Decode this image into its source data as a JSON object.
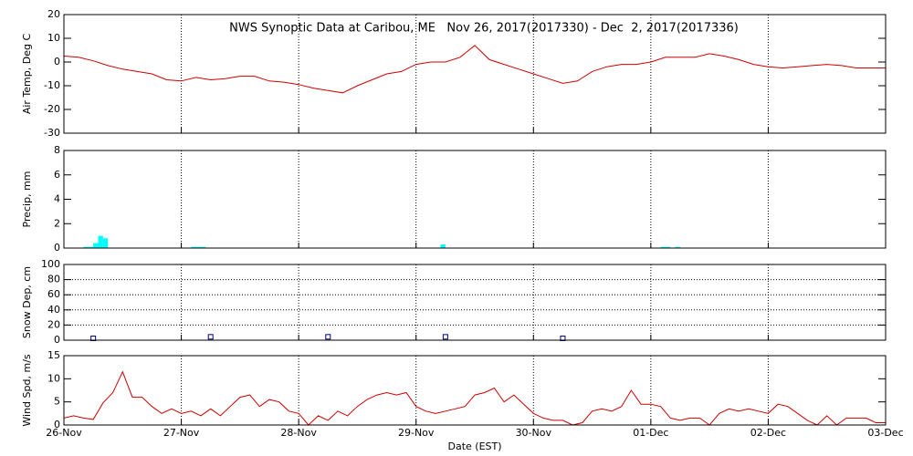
{
  "chart_data": [
    {
      "type": "line",
      "title": "NWS Synoptic Data at Caribou, ME   Nov 26, 2017(2017330) - Dec  2, 2017(2017336)",
      "ylabel": "Air Temp, Deg C",
      "color": "#d00000",
      "ylim": [
        -30,
        20
      ],
      "yticks": [
        -30,
        -20,
        -10,
        0,
        10,
        20
      ],
      "ygrid": false,
      "xgrid": true,
      "xlim": [
        "2017-11-26T00:00",
        "2017-12-03T00:00"
      ],
      "xticks": [
        {
          "value": "2017-11-26T00:00",
          "label": "26-Nov"
        },
        {
          "value": "2017-11-27T00:00",
          "label": "27-Nov"
        },
        {
          "value": "2017-11-28T00:00",
          "label": "28-Nov"
        },
        {
          "value": "2017-11-29T00:00",
          "label": "29-Nov"
        },
        {
          "value": "2017-11-30T00:00",
          "label": "30-Nov"
        },
        {
          "value": "2017-12-01T00:00",
          "label": "01-Dec"
        },
        {
          "value": "2017-12-02T00:00",
          "label": "02-Dec"
        },
        {
          "value": "2017-12-03T00:00",
          "label": "03-Dec"
        }
      ],
      "x": [
        "2017-11-26T00:00",
        "2017-11-26T03:00",
        "2017-11-26T06:00",
        "2017-11-26T09:00",
        "2017-11-26T12:00",
        "2017-11-26T15:00",
        "2017-11-26T18:00",
        "2017-11-26T21:00",
        "2017-11-27T00:00",
        "2017-11-27T03:00",
        "2017-11-27T06:00",
        "2017-11-27T09:00",
        "2017-11-27T12:00",
        "2017-11-27T15:00",
        "2017-11-27T18:00",
        "2017-11-27T21:00",
        "2017-11-28T00:00",
        "2017-11-28T03:00",
        "2017-11-28T06:00",
        "2017-11-28T09:00",
        "2017-11-28T12:00",
        "2017-11-28T15:00",
        "2017-11-28T18:00",
        "2017-11-28T21:00",
        "2017-11-29T00:00",
        "2017-11-29T03:00",
        "2017-11-29T06:00",
        "2017-11-29T09:00",
        "2017-11-29T12:00",
        "2017-11-29T15:00",
        "2017-11-29T18:00",
        "2017-11-29T21:00",
        "2017-11-30T00:00",
        "2017-11-30T03:00",
        "2017-11-30T06:00",
        "2017-11-30T09:00",
        "2017-11-30T12:00",
        "2017-11-30T15:00",
        "2017-11-30T18:00",
        "2017-11-30T21:00",
        "2017-12-01T00:00",
        "2017-12-01T03:00",
        "2017-12-01T06:00",
        "2017-12-01T09:00",
        "2017-12-01T12:00",
        "2017-12-01T15:00",
        "2017-12-01T18:00",
        "2017-12-01T21:00",
        "2017-12-02T00:00",
        "2017-12-02T03:00",
        "2017-12-02T06:00",
        "2017-12-02T09:00",
        "2017-12-02T12:00",
        "2017-12-02T15:00",
        "2017-12-02T18:00",
        "2017-12-02T21:00",
        "2017-12-03T00:00"
      ],
      "values": [
        2.5,
        2,
        0.5,
        -1.5,
        -3,
        -4,
        -5,
        -7.5,
        -8,
        -6.5,
        -7.5,
        -7,
        -6,
        -6,
        -8,
        -8.5,
        -9.5,
        -11,
        -12,
        -13,
        -10,
        -7.5,
        -5,
        -4,
        -1,
        0,
        0,
        2,
        7,
        1,
        -1,
        -3,
        -5,
        -7,
        -9,
        -8,
        -4,
        -2,
        -1,
        -1,
        0,
        2,
        2,
        2,
        3.5,
        2.5,
        1,
        -1,
        -2,
        -2.5,
        -2,
        -1.5,
        -1,
        -1.5,
        -2.5,
        -2.5,
        -2.5
      ]
    },
    {
      "type": "bar",
      "ylabel": "Precip, mm",
      "color": "#00ffff",
      "ylim": [
        0,
        8
      ],
      "yticks": [
        0,
        2,
        4,
        6,
        8
      ],
      "ygrid": false,
      "xgrid": true,
      "xlim": [
        "2017-11-26T00:00",
        "2017-12-03T00:00"
      ],
      "xticks": [
        {
          "value": "2017-11-26T00:00",
          "label": "26-Nov"
        },
        {
          "value": "2017-11-27T00:00",
          "label": "27-Nov"
        },
        {
          "value": "2017-11-28T00:00",
          "label": "28-Nov"
        },
        {
          "value": "2017-11-29T00:00",
          "label": "29-Nov"
        },
        {
          "value": "2017-11-30T00:00",
          "label": "30-Nov"
        },
        {
          "value": "2017-12-01T00:00",
          "label": "01-Dec"
        },
        {
          "value": "2017-12-02T00:00",
          "label": "02-Dec"
        },
        {
          "value": "2017-12-03T00:00",
          "label": "03-Dec"
        }
      ],
      "x": [
        "2017-11-26T04:00",
        "2017-11-26T05:00",
        "2017-11-26T06:00",
        "2017-11-26T07:00",
        "2017-11-26T08:00",
        "2017-11-27T02:00",
        "2017-11-27T03:00",
        "2017-11-27T04:00",
        "2017-11-29T05:00",
        "2017-12-01T02:00",
        "2017-12-01T03:00",
        "2017-12-01T05:00"
      ],
      "values": [
        0.1,
        0.1,
        0.4,
        1.0,
        0.8,
        0.1,
        0.1,
        0.1,
        0.3,
        0.1,
        0.1,
        0.1
      ]
    },
    {
      "type": "scatter",
      "ylabel": "Snow Dep, cm",
      "color": "#000080",
      "ylim": [
        0,
        100
      ],
      "yticks": [
        0,
        20,
        40,
        60,
        80,
        100
      ],
      "ygrid": true,
      "xgrid": true,
      "xlim": [
        "2017-11-26T00:00",
        "2017-12-03T00:00"
      ],
      "xticks": [
        {
          "value": "2017-11-26T00:00",
          "label": "26-Nov"
        },
        {
          "value": "2017-11-27T00:00",
          "label": "27-Nov"
        },
        {
          "value": "2017-11-28T00:00",
          "label": "28-Nov"
        },
        {
          "value": "2017-11-29T00:00",
          "label": "29-Nov"
        },
        {
          "value": "2017-11-30T00:00",
          "label": "30-Nov"
        },
        {
          "value": "2017-12-01T00:00",
          "label": "01-Dec"
        },
        {
          "value": "2017-12-02T00:00",
          "label": "02-Dec"
        },
        {
          "value": "2017-12-03T00:00",
          "label": "03-Dec"
        }
      ],
      "x": [
        "2017-11-26T06:00",
        "2017-11-27T06:00",
        "2017-11-28T06:00",
        "2017-11-29T06:00",
        "2017-11-30T06:00"
      ],
      "values": [
        0,
        2,
        2,
        2,
        0
      ]
    },
    {
      "type": "line",
      "ylabel": "Wind Spd, m/s",
      "xlabel": "Date (EST)",
      "color": "#d00000",
      "ylim": [
        0,
        15
      ],
      "yticks": [
        0,
        5,
        10,
        15
      ],
      "ygrid": false,
      "xgrid": true,
      "xlim": [
        "2017-11-26T00:00",
        "2017-12-03T00:00"
      ],
      "xticks": [
        {
          "value": "2017-11-26T00:00",
          "label": "26-Nov"
        },
        {
          "value": "2017-11-27T00:00",
          "label": "27-Nov"
        },
        {
          "value": "2017-11-28T00:00",
          "label": "28-Nov"
        },
        {
          "value": "2017-11-29T00:00",
          "label": "29-Nov"
        },
        {
          "value": "2017-11-30T00:00",
          "label": "30-Nov"
        },
        {
          "value": "2017-12-01T00:00",
          "label": "01-Dec"
        },
        {
          "value": "2017-12-02T00:00",
          "label": "02-Dec"
        },
        {
          "value": "2017-12-03T00:00",
          "label": "03-Dec"
        }
      ],
      "x": [
        "2017-11-26T00:00",
        "2017-11-26T02:00",
        "2017-11-26T04:00",
        "2017-11-26T06:00",
        "2017-11-26T08:00",
        "2017-11-26T10:00",
        "2017-11-26T12:00",
        "2017-11-26T14:00",
        "2017-11-26T16:00",
        "2017-11-26T18:00",
        "2017-11-26T20:00",
        "2017-11-26T22:00",
        "2017-11-27T00:00",
        "2017-11-27T02:00",
        "2017-11-27T04:00",
        "2017-11-27T06:00",
        "2017-11-27T08:00",
        "2017-11-27T10:00",
        "2017-11-27T12:00",
        "2017-11-27T14:00",
        "2017-11-27T16:00",
        "2017-11-27T18:00",
        "2017-11-27T20:00",
        "2017-11-27T22:00",
        "2017-11-28T00:00",
        "2017-11-28T02:00",
        "2017-11-28T04:00",
        "2017-11-28T06:00",
        "2017-11-28T08:00",
        "2017-11-28T10:00",
        "2017-11-28T12:00",
        "2017-11-28T14:00",
        "2017-11-28T16:00",
        "2017-11-28T18:00",
        "2017-11-28T20:00",
        "2017-11-28T22:00",
        "2017-11-29T00:00",
        "2017-11-29T02:00",
        "2017-11-29T04:00",
        "2017-11-29T06:00",
        "2017-11-29T08:00",
        "2017-11-29T10:00",
        "2017-11-29T12:00",
        "2017-11-29T14:00",
        "2017-11-29T16:00",
        "2017-11-29T18:00",
        "2017-11-29T20:00",
        "2017-11-29T22:00",
        "2017-11-30T00:00",
        "2017-11-30T02:00",
        "2017-11-30T04:00",
        "2017-11-30T06:00",
        "2017-11-30T08:00",
        "2017-11-30T10:00",
        "2017-11-30T12:00",
        "2017-11-30T14:00",
        "2017-11-30T16:00",
        "2017-11-30T18:00",
        "2017-11-30T20:00",
        "2017-11-30T22:00",
        "2017-12-01T00:00",
        "2017-12-01T02:00",
        "2017-12-01T04:00",
        "2017-12-01T06:00",
        "2017-12-01T08:00",
        "2017-12-01T10:00",
        "2017-12-01T12:00",
        "2017-12-01T14:00",
        "2017-12-01T16:00",
        "2017-12-01T18:00",
        "2017-12-01T20:00",
        "2017-12-01T22:00",
        "2017-12-02T00:00",
        "2017-12-02T02:00",
        "2017-12-02T04:00",
        "2017-12-02T06:00",
        "2017-12-02T08:00",
        "2017-12-02T10:00",
        "2017-12-02T12:00",
        "2017-12-02T14:00",
        "2017-12-02T16:00",
        "2017-12-02T18:00",
        "2017-12-02T20:00",
        "2017-12-02T22:00",
        "2017-12-03T00:00"
      ],
      "values": [
        1.5,
        2,
        1.5,
        1.2,
        4.8,
        7,
        11.5,
        6,
        6,
        4,
        2.5,
        3.5,
        2.5,
        3,
        2,
        3.5,
        2,
        4,
        6,
        6.5,
        4,
        5.5,
        5,
        3,
        2.5,
        0,
        2,
        1,
        3,
        2,
        4,
        5.5,
        6.5,
        7,
        6.5,
        7,
        4,
        3,
        2.5,
        3,
        3.5,
        4,
        6.5,
        7,
        8,
        5,
        6.5,
        4.5,
        2.5,
        1.5,
        1,
        1,
        0,
        0.5,
        3,
        3.5,
        3,
        4,
        7.5,
        4.5,
        4.5,
        4,
        1.5,
        1,
        1.5,
        1.5,
        0,
        2.5,
        3.5,
        3,
        3.5,
        3,
        2.5,
        4.5,
        4,
        2.5,
        1,
        0,
        2,
        0,
        1.5,
        1.5,
        1.5,
        0.5,
        0.5
      ]
    }
  ]
}
